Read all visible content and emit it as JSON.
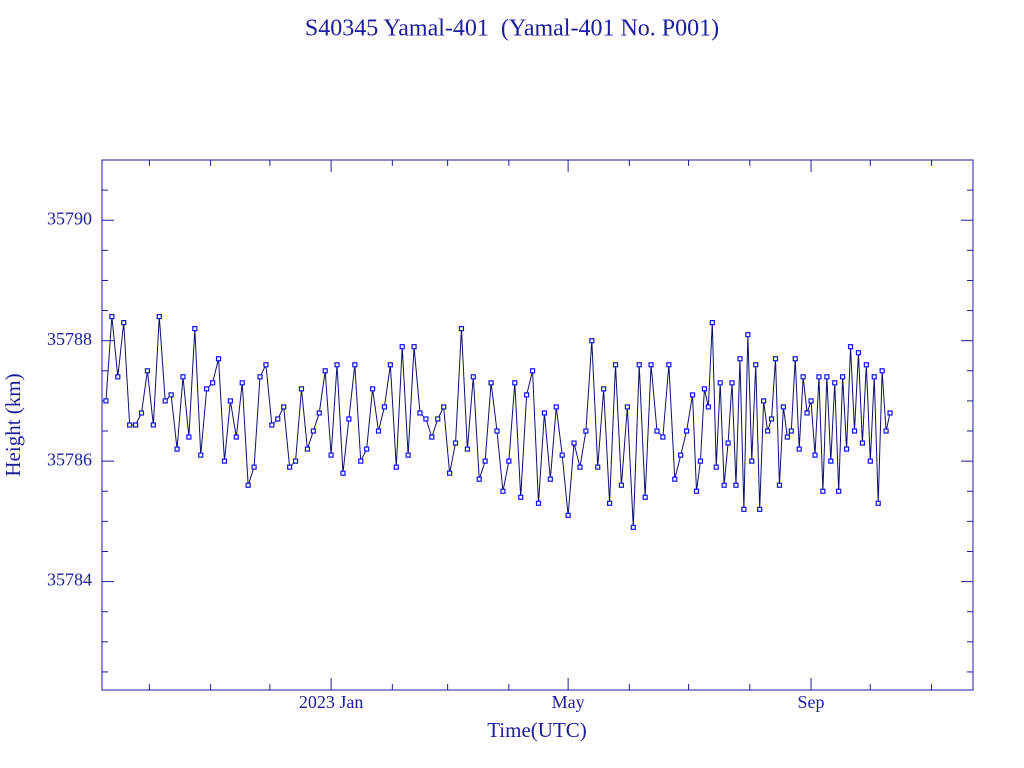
{
  "chart_data": {
    "type": "line",
    "title": "S40345 Yamal-401  (Yamal-401 No. P001)",
    "xlabel": "Time(UTC)",
    "ylabel": "Height (km)",
    "color": "#1010ee",
    "line_color": "#10106a",
    "axis_color": "#1c1c9c",
    "xlim": [
      -116,
      325
    ],
    "xticks": [
      {
        "value": 0,
        "label": "2023 Jan"
      },
      {
        "value": 120,
        "label": "May"
      },
      {
        "value": 243,
        "label": "Sep"
      }
    ],
    "xminorticks": [
      -92,
      -61,
      -31,
      31,
      59,
      90,
      151,
      181,
      212,
      273,
      304
    ],
    "ylim": [
      35782.2,
      35791
    ],
    "yticks": [
      35784,
      35786,
      35788,
      35790
    ],
    "yminorticks": [
      35782.5,
      35783,
      35783.5,
      35784.5,
      35785,
      35785.5,
      35786.5,
      35787,
      35787.5,
      35788.5,
      35789,
      35789.5,
      35790.5
    ],
    "x": [
      -114,
      -111,
      -108,
      -105,
      -102,
      -99,
      -96,
      -93,
      -90,
      -87,
      -84,
      -81,
      -78,
      -75,
      -72,
      -69,
      -66,
      -63,
      -60,
      -57,
      -54,
      -51,
      -48,
      -45,
      -42,
      -39,
      -36,
      -33,
      -30,
      -27,
      -24,
      -21,
      -18,
      -15,
      -12,
      -9,
      -6,
      -3,
      0,
      3,
      6,
      9,
      12,
      15,
      18,
      21,
      24,
      27,
      30,
      33,
      36,
      39,
      42,
      45,
      48,
      51,
      54,
      57,
      60,
      63,
      66,
      69,
      72,
      75,
      78,
      81,
      84,
      87,
      90,
      93,
      96,
      99,
      102,
      105,
      108,
      111,
      114,
      117,
      120,
      123,
      126,
      129,
      132,
      135,
      138,
      141,
      144,
      147,
      150,
      153,
      156,
      159,
      162,
      165,
      168,
      171,
      174,
      177,
      180,
      183,
      185,
      187,
      189,
      191,
      193,
      195,
      197,
      199,
      201,
      203,
      205,
      207,
      209,
      211,
      213,
      215,
      217,
      219,
      221,
      223,
      225,
      227,
      229,
      231,
      233,
      235,
      237,
      239,
      241,
      243,
      245,
      247,
      249,
      251,
      253,
      255,
      257,
      259,
      261,
      263,
      265,
      267,
      269,
      271,
      273,
      275,
      277,
      279,
      281,
      283
    ],
    "values": [
      35787.0,
      35788.4,
      35787.4,
      35788.3,
      35786.6,
      35786.6,
      35786.8,
      35787.5,
      35786.6,
      35788.4,
      35787.0,
      35787.1,
      35786.2,
      35787.4,
      35786.4,
      35788.2,
      35786.1,
      35787.2,
      35787.3,
      35787.7,
      35786.0,
      35787.0,
      35786.4,
      35787.3,
      35785.6,
      35785.9,
      35787.4,
      35787.6,
      35786.6,
      35786.7,
      35786.9,
      35785.9,
      35786.0,
      35787.2,
      35786.2,
      35786.5,
      35786.8,
      35787.5,
      35786.1,
      35787.6,
      35785.8,
      35786.7,
      35787.6,
      35786.0,
      35786.2,
      35787.2,
      35786.5,
      35786.9,
      35787.6,
      35785.9,
      35787.9,
      35786.1,
      35787.9,
      35786.8,
      35786.7,
      35786.4,
      35786.7,
      35786.9,
      35785.8,
      35786.3,
      35788.2,
      35786.2,
      35787.4,
      35785.7,
      35786.0,
      35787.3,
      35786.5,
      35785.5,
      35786.0,
      35787.3,
      35785.4,
      35787.1,
      35787.5,
      35785.3,
      35786.8,
      35785.7,
      35786.9,
      35786.1,
      35785.1,
      35786.3,
      35785.9,
      35786.5,
      35788.0,
      35785.9,
      35787.2,
      35785.3,
      35787.6,
      35785.6,
      35786.9,
      35784.9,
      35787.6,
      35785.4,
      35787.6,
      35786.5,
      35786.4,
      35787.6,
      35785.7,
      35786.1,
      35786.5,
      35787.1,
      35785.5,
      35786.0,
      35787.2,
      35786.9,
      35788.3,
      35785.9,
      35787.3,
      35785.6,
      35786.3,
      35787.3,
      35785.6,
      35787.7,
      35785.2,
      35788.1,
      35786.0,
      35787.6,
      35785.2,
      35787.0,
      35786.5,
      35786.7,
      35787.7,
      35785.6,
      35786.9,
      35786.4,
      35786.5,
      35787.7,
      35786.2,
      35787.4,
      35786.8,
      35787.0,
      35786.1,
      35787.4,
      35785.5,
      35787.4,
      35786.0,
      35787.3,
      35785.5,
      35787.4,
      35786.2,
      35787.9,
      35786.5,
      35787.8,
      35786.3,
      35787.6,
      35786.0,
      35787.4,
      35785.3,
      35787.5,
      35786.5,
      35786.8
    ]
  }
}
